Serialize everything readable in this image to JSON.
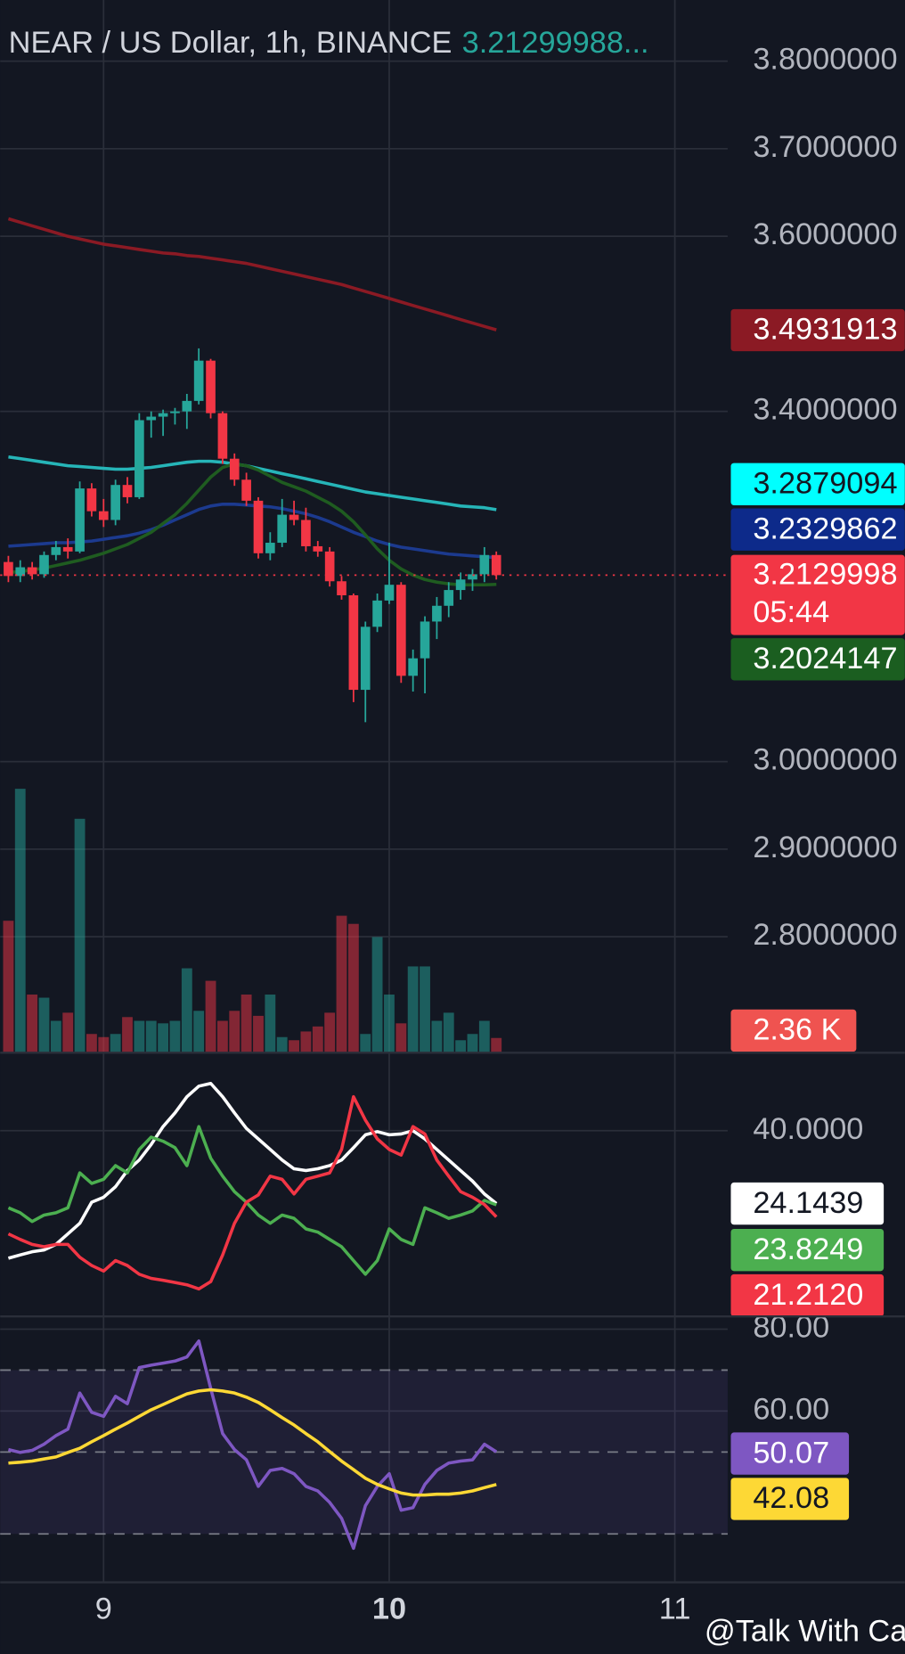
{
  "watermark": "@Talk With Candle",
  "chart_data": [
    {
      "type": "candlestick",
      "title": "NEAR / US Dollar, 1h, BINANCE",
      "subtitle": "3.21299988...",
      "countdown": "05:44",
      "up_color": "#26a69a",
      "down_color": "#f23645",
      "grid": true,
      "x": [
        8.6667,
        8.7083,
        8.75,
        8.7917,
        8.8333,
        8.875,
        8.9167,
        8.9583,
        9,
        9.0417,
        9.0833,
        9.125,
        9.1667,
        9.2083,
        9.25,
        9.2917,
        9.3333,
        9.375,
        9.4167,
        9.4583,
        9.5,
        9.5417,
        9.5833,
        9.625,
        9.6667,
        9.7083,
        9.75,
        9.7917,
        9.8333,
        9.875,
        9.9167,
        9.9583,
        10,
        10.0417,
        10.0833,
        10.125,
        10.1667,
        10.2083,
        10.25,
        10.2917,
        10.3333,
        10.375
      ],
      "open": [
        3.228,
        3.212,
        3.222,
        3.214,
        3.236,
        3.245,
        3.24,
        3.312,
        3.286,
        3.276,
        3.316,
        3.302,
        3.39,
        3.394,
        3.398,
        3.4,
        3.412,
        3.458,
        3.398,
        3.346,
        3.322,
        3.298,
        3.238,
        3.25,
        3.282,
        3.276,
        3.246,
        3.24,
        3.206,
        3.19,
        3.082,
        3.154,
        3.184,
        3.202,
        3.098,
        3.118,
        3.16,
        3.178,
        3.196,
        3.208,
        3.214,
        3.236
      ],
      "high": [
        3.235,
        3.23,
        3.228,
        3.24,
        3.252,
        3.255,
        3.32,
        3.318,
        3.3,
        3.322,
        3.325,
        3.398,
        3.4,
        3.402,
        3.404,
        3.42,
        3.472,
        3.46,
        3.4,
        3.352,
        3.33,
        3.302,
        3.262,
        3.3,
        3.298,
        3.29,
        3.252,
        3.245,
        3.212,
        3.192,
        3.16,
        3.192,
        3.25,
        3.205,
        3.128,
        3.166,
        3.188,
        3.205,
        3.216,
        3.22,
        3.245,
        3.24
      ],
      "low": [
        3.205,
        3.205,
        3.208,
        3.21,
        3.23,
        3.232,
        3.238,
        3.28,
        3.268,
        3.27,
        3.295,
        3.3,
        3.37,
        3.372,
        3.385,
        3.38,
        3.408,
        3.392,
        3.34,
        3.315,
        3.292,
        3.232,
        3.23,
        3.245,
        3.27,
        3.24,
        3.234,
        3.2,
        3.185,
        3.068,
        3.045,
        3.148,
        3.18,
        3.09,
        3.08,
        3.078,
        3.14,
        3.165,
        3.185,
        3.195,
        3.205,
        3.208
      ],
      "close": [
        3.212,
        3.222,
        3.214,
        3.236,
        3.245,
        3.24,
        3.312,
        3.286,
        3.276,
        3.316,
        3.302,
        3.39,
        3.394,
        3.398,
        3.4,
        3.412,
        3.458,
        3.398,
        3.346,
        3.322,
        3.298,
        3.238,
        3.25,
        3.282,
        3.276,
        3.246,
        3.24,
        3.206,
        3.19,
        3.082,
        3.154,
        3.184,
        3.202,
        3.098,
        3.118,
        3.16,
        3.178,
        3.196,
        3.208,
        3.214,
        3.236,
        3.2129998
      ],
      "series": [
        {
          "color": "#8b1a24",
          "label_color": "#8b1a24",
          "values": [
            3.62,
            3.616,
            3.612,
            3.608,
            3.604,
            3.6,
            3.597,
            3.594,
            3.591,
            3.589,
            3.587,
            3.585,
            3.583,
            3.581,
            3.58,
            3.578,
            3.577,
            3.575,
            3.573,
            3.571,
            3.569,
            3.566,
            3.563,
            3.56,
            3.557,
            3.554,
            3.551,
            3.548,
            3.545,
            3.541,
            3.537,
            3.533,
            3.529,
            3.525,
            3.521,
            3.517,
            3.513,
            3.509,
            3.505,
            3.501,
            3.497,
            3.4931913
          ]
        },
        {
          "color": "#26b5b8",
          "label_color": "#00ffff",
          "values": [
            3.348,
            3.346,
            3.344,
            3.342,
            3.34,
            3.338,
            3.337,
            3.336,
            3.335,
            3.334,
            3.334,
            3.335,
            3.336,
            3.338,
            3.34,
            3.342,
            3.343,
            3.343,
            3.342,
            3.34,
            3.338,
            3.335,
            3.332,
            3.329,
            3.326,
            3.323,
            3.32,
            3.317,
            3.314,
            3.311,
            3.308,
            3.306,
            3.304,
            3.302,
            3.3,
            3.298,
            3.296,
            3.294,
            3.292,
            3.291,
            3.29,
            3.2879094
          ]
        },
        {
          "color": "#1c3a8f",
          "label_color": "#0d2a8a",
          "values": [
            3.246,
            3.247,
            3.248,
            3.249,
            3.25,
            3.25,
            3.251,
            3.252,
            3.254,
            3.256,
            3.258,
            3.261,
            3.265,
            3.27,
            3.276,
            3.282,
            3.288,
            3.292,
            3.294,
            3.294,
            3.293,
            3.292,
            3.291,
            3.289,
            3.286,
            3.283,
            3.279,
            3.274,
            3.268,
            3.262,
            3.257,
            3.252,
            3.248,
            3.245,
            3.243,
            3.241,
            3.239,
            3.237,
            3.236,
            3.235,
            3.234,
            3.2329862
          ]
        },
        {
          "color": "#1f5c20",
          "label_color": "#1b5e20",
          "values": [
            3.216,
            3.217,
            3.219,
            3.221,
            3.224,
            3.227,
            3.23,
            3.234,
            3.238,
            3.243,
            3.248,
            3.255,
            3.262,
            3.272,
            3.282,
            3.295,
            3.31,
            3.325,
            3.336,
            3.34,
            3.338,
            3.333,
            3.326,
            3.319,
            3.314,
            3.309,
            3.302,
            3.295,
            3.286,
            3.274,
            3.259,
            3.243,
            3.23,
            3.22,
            3.213,
            3.208,
            3.205,
            3.203,
            3.202,
            3.202,
            3.202,
            3.2024147
          ]
        }
      ],
      "volume": {
        "ylim": [
          0,
          168.3
        ],
        "values": [
          21.1,
          42.2,
          9.3,
          8.8,
          5.1,
          6.4,
          37.4,
          3.0,
          2.5,
          3.0,
          5.7,
          5.1,
          5.1,
          4.7,
          5.1,
          13.5,
          6.7,
          11.5,
          5.1,
          6.7,
          9.3,
          5.9,
          9.3,
          2.5,
          2.0,
          3.4,
          4.2,
          6.4,
          21.9,
          20.6,
          3.0,
          18.5,
          9.3,
          4.7,
          13.8,
          13.8,
          5.1,
          6.4,
          2.0,
          3.0,
          5.1,
          2.36
        ],
        "value_labels": [
          null,
          null,
          null,
          null,
          null,
          null,
          null,
          null,
          null,
          null,
          null,
          null,
          null,
          null,
          null,
          null,
          null,
          null,
          null,
          null,
          null,
          null,
          null,
          null,
          null,
          null,
          null,
          null,
          null,
          null,
          null,
          null,
          null,
          null,
          null,
          null,
          null,
          null,
          null,
          null,
          null,
          "2.36 K"
        ]
      },
      "xlim": [
        8.638,
        11.185
      ],
      "xticks": [
        9,
        10,
        11
      ],
      "ylim": [
        2.6675,
        3.8699
      ],
      "yticks": [
        {
          "value": 3.8,
          "label": "3.8000000"
        },
        {
          "value": 3.7,
          "label": "3.7000000"
        },
        {
          "value": 3.6,
          "label": "3.6000000"
        },
        {
          "value": 3.4,
          "label": "3.4000000"
        },
        {
          "value": 3.0,
          "label": "3.0000000"
        },
        {
          "value": 2.9,
          "label": "2.9000000"
        },
        {
          "value": 2.8,
          "label": "2.8000000"
        }
      ]
    },
    {
      "type": "line",
      "grid": true,
      "x": [
        8.6667,
        8.7083,
        8.75,
        8.7917,
        8.8333,
        8.875,
        8.9167,
        8.9583,
        9,
        9.0417,
        9.0833,
        9.125,
        9.1667,
        9.2083,
        9.25,
        9.2917,
        9.3333,
        9.375,
        9.4167,
        9.4583,
        9.5,
        9.5417,
        9.5833,
        9.625,
        9.6667,
        9.7083,
        9.75,
        9.7917,
        9.8333,
        9.875,
        9.9167,
        9.9583,
        10,
        10.0417,
        10.0833,
        10.125,
        10.1667,
        10.2083,
        10.25,
        10.2917,
        10.3333,
        10.375
      ],
      "xlim": [
        8.638,
        11.185
      ],
      "ylim": [
        -0.5,
        57
      ],
      "yticks": [
        {
          "value": 40,
          "label": "40.0000"
        }
      ],
      "series": [
        {
          "color": "#ffffff",
          "values": [
            12.2,
            12.9,
            13.6,
            14.0,
            15.2,
            17.5,
            19.8,
            24.4,
            25.5,
            27.8,
            31.3,
            33.6,
            37.0,
            40.9,
            43.9,
            47.4,
            49.7,
            50.3,
            47.4,
            43.9,
            40.5,
            38.2,
            35.9,
            33.6,
            31.7,
            31.3,
            31.7,
            32.4,
            33.6,
            36.3,
            39.1,
            39.8,
            39.1,
            39.3,
            40.0,
            38.2,
            35.9,
            33.6,
            31.3,
            29.0,
            26.2,
            24.1439
          ]
        },
        {
          "color": "#4caf50",
          "values": [
            23.2,
            22.1,
            20.2,
            21.6,
            22.1,
            23.2,
            30.8,
            28.5,
            29.4,
            32.4,
            30.8,
            35.9,
            38.6,
            37.7,
            36.3,
            32.4,
            40.9,
            34.0,
            30.1,
            26.7,
            24.4,
            21.6,
            19.8,
            21.6,
            20.9,
            18.6,
            17.9,
            16.3,
            14.7,
            11.7,
            8.7,
            11.7,
            18.6,
            16.3,
            15.2,
            23.2,
            22.1,
            20.9,
            21.6,
            22.5,
            24.8,
            23.8249
          ]
        },
        {
          "color": "#f23645",
          "values": [
            17.5,
            16.3,
            15.2,
            14.7,
            15.2,
            15.2,
            12.4,
            10.6,
            9.4,
            11.7,
            10.6,
            8.7,
            7.8,
            7.4,
            6.9,
            6.4,
            5.5,
            7.1,
            12.9,
            19.8,
            24.4,
            26.0,
            30.1,
            29.4,
            26.2,
            29.4,
            30.1,
            30.8,
            35.9,
            47.4,
            42.3,
            38.2,
            35.9,
            34.7,
            40.9,
            39.3,
            33.6,
            30.1,
            26.7,
            25.5,
            23.9,
            21.212
          ],
          "value_labels": [
            null,
            null,
            null,
            null,
            null,
            null,
            null,
            null,
            null,
            null,
            null,
            null,
            null,
            null,
            null,
            null,
            null,
            null,
            null,
            null,
            null,
            null,
            null,
            null,
            null,
            null,
            null,
            null,
            null,
            null,
            null,
            null,
            null,
            null,
            null,
            null,
            null,
            null,
            null,
            null,
            null,
            "21.2120"
          ]
        }
      ]
    },
    {
      "type": "line",
      "grid": true,
      "x": [
        8.6667,
        8.7083,
        8.75,
        8.7917,
        8.8333,
        8.875,
        8.9167,
        8.9583,
        9,
        9.0417,
        9.0833,
        9.125,
        9.1667,
        9.2083,
        9.25,
        9.2917,
        9.3333,
        9.375,
        9.4167,
        9.4583,
        9.5,
        9.5417,
        9.5833,
        9.625,
        9.6667,
        9.7083,
        9.75,
        9.7917,
        9.8333,
        9.875,
        9.9167,
        9.9583,
        10,
        10.0417,
        10.0833,
        10.125,
        10.1667,
        10.2083,
        10.25,
        10.2917,
        10.3333,
        10.375
      ],
      "xlim": [
        8.638,
        11.185
      ],
      "ylim": [
        18.2,
        83.1
      ],
      "yticks": [
        {
          "value": 80,
          "label": "80.00"
        },
        {
          "value": 60,
          "label": "60.00"
        }
      ],
      "band": [
        30,
        70
      ],
      "levels": [
        70,
        50,
        30
      ],
      "series": [
        {
          "color": "#7e57c2",
          "values": [
            50.6,
            49.9,
            50.4,
            51.9,
            54.0,
            55.6,
            64.4,
            59.7,
            58.7,
            63.6,
            61.8,
            70.6,
            71.2,
            71.7,
            72.2,
            73.2,
            77.1,
            65.5,
            54.5,
            50.6,
            48.1,
            41.6,
            45.5,
            46.0,
            44.7,
            41.6,
            40.5,
            37.7,
            33.8,
            26.5,
            36.9,
            41.6,
            44.7,
            35.8,
            36.4,
            42.1,
            45.5,
            47.3,
            47.8,
            48.1,
            51.9,
            50.07
          ]
        },
        {
          "color": "#fdd835",
          "values": [
            47.3,
            47.5,
            47.8,
            48.3,
            48.8,
            49.9,
            50.9,
            52.5,
            54.0,
            55.6,
            57.1,
            58.7,
            60.3,
            61.6,
            62.9,
            64.2,
            64.9,
            65.2,
            64.9,
            64.4,
            63.4,
            62.1,
            60.3,
            58.4,
            56.6,
            54.5,
            52.5,
            50.1,
            47.8,
            45.7,
            43.6,
            42.1,
            41.0,
            40.0,
            39.5,
            39.5,
            39.7,
            39.7,
            40.0,
            40.5,
            41.3,
            42.08
          ]
        }
      ]
    }
  ]
}
